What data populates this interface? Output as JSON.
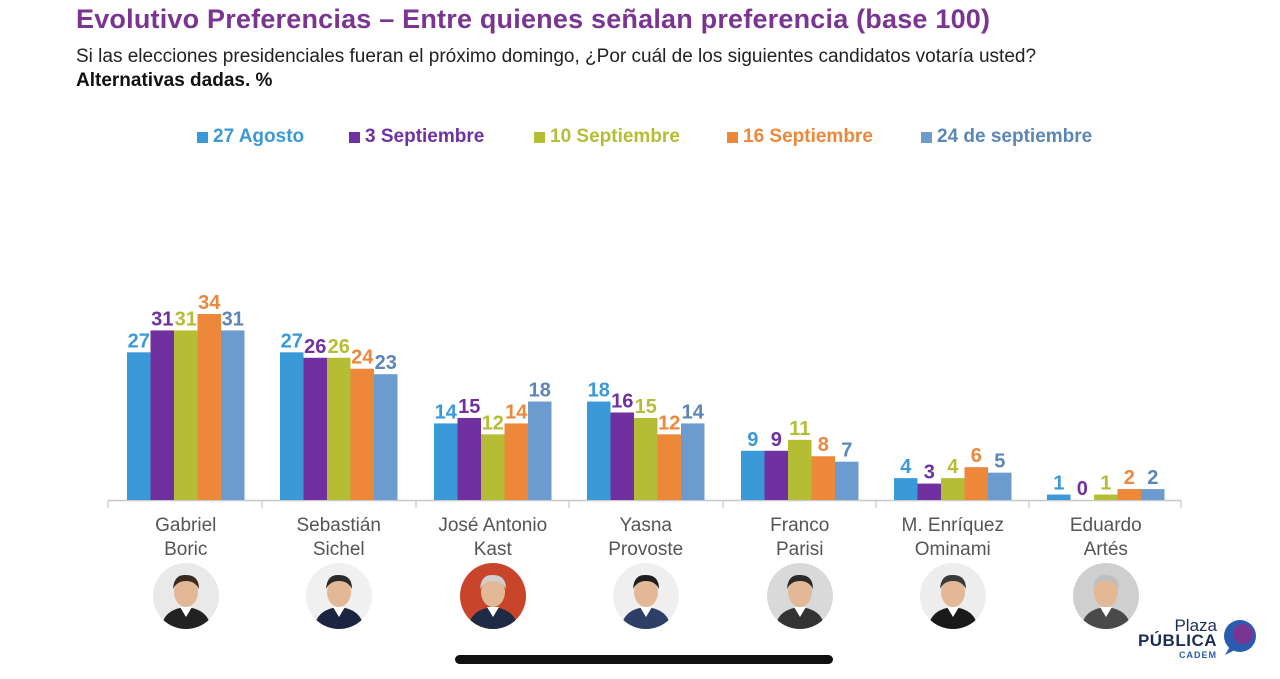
{
  "header": {
    "title": "Evolutivo Preferencias – Entre quienes señalan preferencia (base 100)",
    "question": "Si las elecciones presidenciales fueran el próximo domingo, ¿Por cuál de los siguientes candidatos votaría usted?",
    "note": "Alternativas dadas. %"
  },
  "chart_data": {
    "type": "bar",
    "categories": [
      "Gabriel Boric",
      "Sebastián Sichel",
      "José Antonio Kast",
      "Yasna Provoste",
      "Franco Parisi",
      "M. Enríquez Ominami",
      "Eduardo Artés"
    ],
    "category_lines": [
      [
        "Gabriel",
        "Boric"
      ],
      [
        "Sebastián",
        "Sichel"
      ],
      [
        "José Antonio",
        "Kast"
      ],
      [
        "Yasna",
        "Provoste"
      ],
      [
        "Franco",
        "Parisi"
      ],
      [
        "M. Enríquez",
        "Ominami"
      ],
      [
        "Eduardo",
        "Artés"
      ]
    ],
    "series": [
      {
        "name": "27 Agosto",
        "color": "#3a9ad9",
        "values": [
          27,
          27,
          14,
          18,
          9,
          4,
          1
        ]
      },
      {
        "name": "3 Septiembre",
        "color": "#7030a0",
        "values": [
          31,
          26,
          15,
          16,
          9,
          3,
          0
        ]
      },
      {
        "name": "10 Septiembre",
        "color": "#b5bd34",
        "values": [
          31,
          26,
          12,
          15,
          11,
          4,
          1
        ]
      },
      {
        "name": "16 Septiembre",
        "color": "#ed873a",
        "values": [
          34,
          24,
          14,
          12,
          8,
          6,
          2
        ]
      },
      {
        "name": "24 de septiembre",
        "color": "#6c9bd0",
        "values": [
          31,
          23,
          18,
          14,
          7,
          5,
          2
        ]
      }
    ],
    "label_colors": [
      "#3a9ad9",
      "#7030a0",
      "#b5bd34",
      "#ed873a",
      "#5b86b8"
    ],
    "ylim": [
      0,
      35
    ],
    "grid": false,
    "legend_position": "top-center"
  },
  "candidate_photos": [
    "avatar-boric",
    "avatar-sichel",
    "avatar-kast",
    "avatar-provoste",
    "avatar-parisi",
    "avatar-meo",
    "avatar-artes"
  ],
  "logo": {
    "line1": "Plaza",
    "line2": "PÚBLICA",
    "line3": "CADEM"
  }
}
